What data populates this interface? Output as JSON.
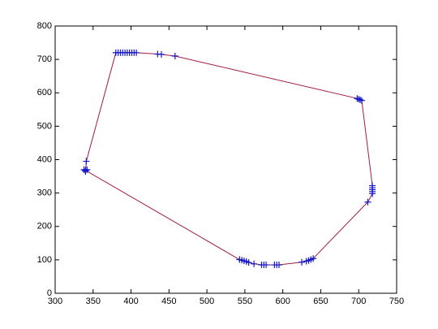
{
  "chart_data": {
    "type": "line",
    "x": [
      340,
      341,
      380,
      383,
      386,
      389,
      392,
      395,
      398,
      401,
      404,
      407,
      435,
      440,
      458,
      698,
      700,
      702,
      704,
      718,
      718,
      718,
      718,
      718,
      712,
      640,
      637,
      634,
      631,
      625,
      595,
      592,
      589,
      578,
      575,
      572,
      562,
      555,
      552,
      549,
      546,
      543,
      340,
      338,
      342,
      340
    ],
    "series": [
      {
        "color": "#a01c3c",
        "marker_color": "#1414c8",
        "marker": "+",
        "values": [
          365,
          395,
          720,
          720,
          720,
          720,
          720,
          720,
          720,
          720,
          720,
          720,
          716,
          715,
          710,
          583,
          581,
          579,
          577,
          322,
          316,
          310,
          304,
          298,
          273,
          104,
          101,
          98,
          96,
          93,
          85,
          85,
          85,
          85,
          85,
          85,
          88,
          92,
          95,
          97,
          99,
          101,
          368,
          370,
          370,
          365
        ]
      }
    ],
    "xlim": [
      300,
      750
    ],
    "xticks": [
      300,
      350,
      400,
      450,
      500,
      550,
      600,
      650,
      700,
      750
    ],
    "ylim": [
      0,
      800
    ],
    "yticks": [
      0,
      100,
      200,
      300,
      400,
      500,
      600,
      700,
      800
    ],
    "grid": false
  }
}
